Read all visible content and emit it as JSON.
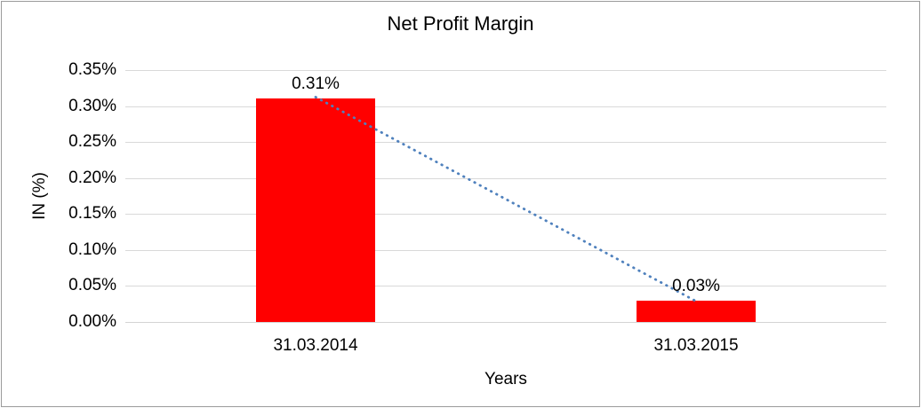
{
  "chart_data": {
    "type": "bar",
    "title": "Net Profit Margin",
    "xlabel": "Years",
    "ylabel": "IN (%)",
    "categories": [
      "31.03.2014",
      "31.03.2015"
    ],
    "values": [
      0.31,
      0.03
    ],
    "data_labels": [
      "0.31%",
      "0.03%"
    ],
    "yticks": [
      0.0,
      0.05,
      0.1,
      0.15,
      0.2,
      0.25,
      0.3,
      0.35
    ],
    "ytick_labels": [
      "0.00%",
      "0.05%",
      "0.10%",
      "0.15%",
      "0.20%",
      "0.25%",
      "0.30%",
      "0.35%"
    ],
    "ylim": [
      0,
      0.35
    ],
    "grid": "horizontal",
    "legend": "none",
    "trendline": {
      "type": "linear",
      "style": "dotted",
      "connects": "bar-tops"
    },
    "colors": {
      "bar": "#FF0000",
      "trendline": "#4F81BD",
      "gridline": "#D9D9D9",
      "axis_line": "#D3D3D3",
      "text": "#000000",
      "frame_border": "#9B9B9B"
    }
  }
}
